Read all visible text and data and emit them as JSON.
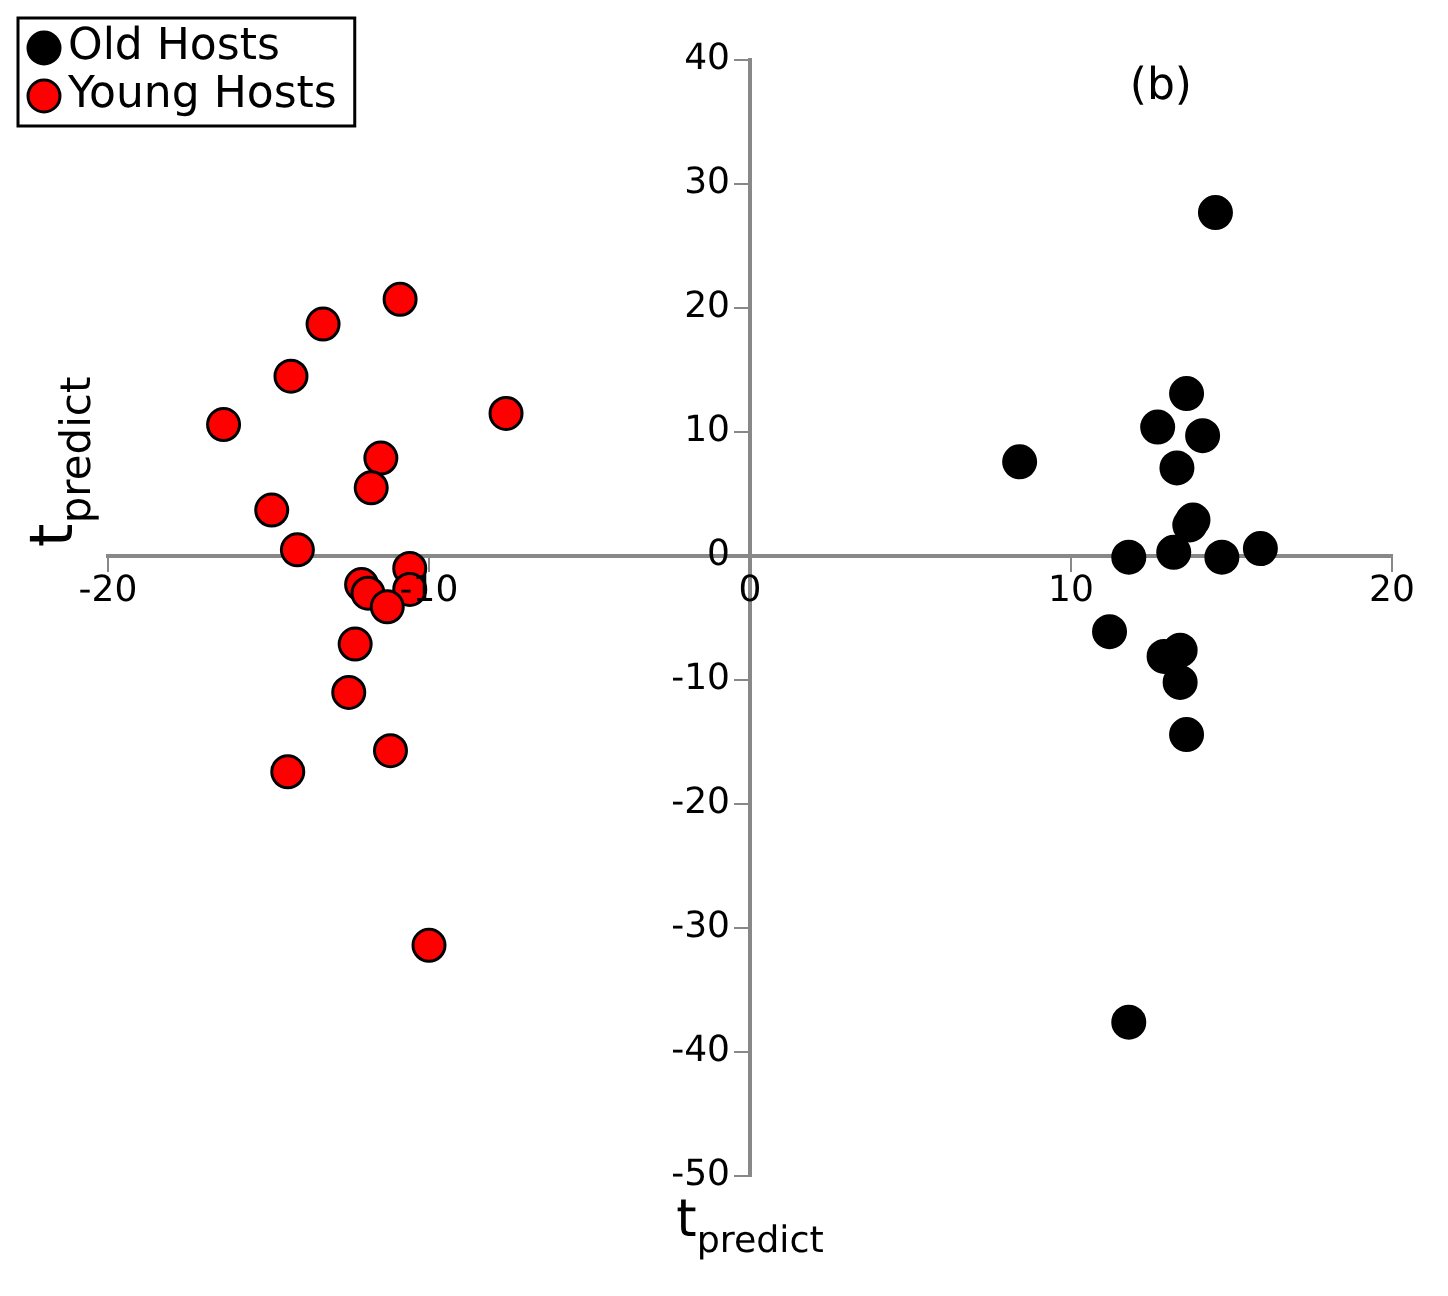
{
  "chart_data": {
    "type": "scatter",
    "xlabel": "t$_{predict}$",
    "ylabel": "t$_{predict}$",
    "annotations": [
      "(b)"
    ],
    "xlim": [
      -20,
      20
    ],
    "xticks": [
      -20,
      -10,
      0,
      10,
      20
    ],
    "ylim": [
      -50,
      40
    ],
    "yticks": [
      -50,
      -40,
      -30,
      -20,
      -10,
      0,
      10,
      20,
      30,
      40
    ],
    "grid": false,
    "legend": "top left",
    "marker": "circle",
    "series": [
      {
        "name": "Old Hosts",
        "color": "#000000",
        "x": [
          14.5,
          13.6,
          12.7,
          14.1,
          13.3,
          8.4,
          13.8,
          13.7,
          11.8,
          13.2,
          14.7,
          15.9,
          11.2,
          12.9,
          13.4,
          13.4,
          13.6,
          11.8
        ],
        "values": [
          27.7,
          13.1,
          10.4,
          9.7,
          7.1,
          7.6,
          2.9,
          2.5,
          -0.1,
          0.3,
          -0.1,
          0.6,
          -6.1,
          -8.1,
          -7.6,
          -10.2,
          -14.4,
          -37.6
        ]
      },
      {
        "name": "Young Hosts",
        "color": "#ff0000",
        "x": [
          -10.9,
          -13.3,
          -14.3,
          -16.4,
          -7.6,
          -11.5,
          -11.8,
          -14.9,
          -14.1,
          -10.6,
          -12.1,
          -10.6,
          -11.9,
          -11.3,
          -12.3,
          -12.5,
          -11.2,
          -14.4,
          -10.0
        ],
        "values": [
          20.7,
          18.7,
          14.5,
          10.6,
          11.5,
          7.9,
          5.5,
          3.7,
          0.5,
          -1.0,
          -2.3,
          -2.7,
          -3.0,
          -4.1,
          -7.1,
          -11.0,
          -15.7,
          -17.4,
          -31.4
        ]
      }
    ]
  }
}
